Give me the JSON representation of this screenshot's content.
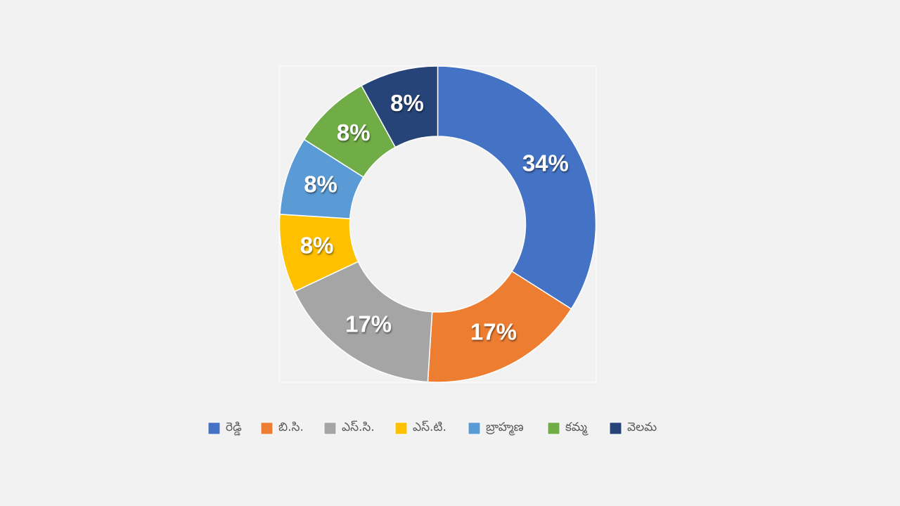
{
  "chart_data": {
    "type": "donut",
    "categories": [
      "రెడ్డి",
      "బి.సి.",
      "ఎస్.సి.",
      "ఎస్.టి.",
      "బ్రాహ్మణ",
      "కమ్మ",
      "వెలమ"
    ],
    "values": [
      34,
      17,
      17,
      8,
      8,
      8,
      8
    ],
    "value_labels": [
      "34%",
      "17%",
      "17%",
      "8%",
      "8%",
      "8%",
      "8%"
    ],
    "colors": [
      "#4472c4",
      "#ed7d31",
      "#a5a5a5",
      "#ffc000",
      "#5b9bd5",
      "#70ad47",
      "#264478"
    ],
    "legend": "bottom"
  }
}
